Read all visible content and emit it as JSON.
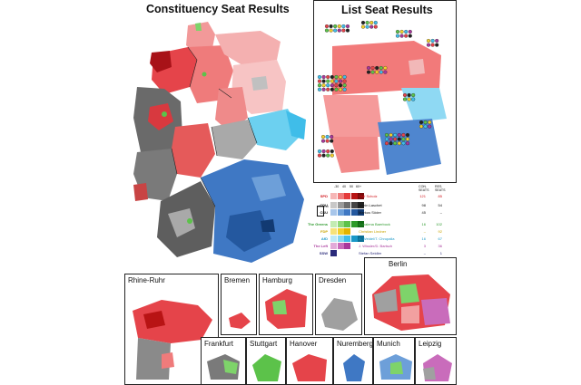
{
  "titles": {
    "constituency": "Constituency Seat Results",
    "list": "List Seat Results"
  },
  "legend": {
    "thresholds": [
      "-30",
      "40",
      "50",
      "60+"
    ],
    "col_con": "CON. SEATS",
    "col_res": "RES. SEATS",
    "union_tag": "CDU/CSU",
    "parties": [
      {
        "party": "SPD",
        "leader": "Olaf Scholz",
        "con": "121",
        "res": "85",
        "colors": [
          "#f6b6b6",
          "#ef7b7b",
          "#e53a3a",
          "#b81414",
          "#7a0a0a"
        ],
        "text_color": "#d1141b"
      },
      {
        "party": "CDU",
        "leader": "Armin Laschet",
        "con": "98",
        "res": "54",
        "colors": [
          "#c8c8c8",
          "#9a9a9a",
          "#6d6d6d",
          "#454545",
          "#222222"
        ],
        "text_color": "#111111"
      },
      {
        "party": "CSU",
        "leader": "Markus Söder",
        "con": "45",
        "res": "–",
        "colors": [
          "#a8c6ea",
          "#6d9fd9",
          "#3f78c4",
          "#24589f",
          "#123a72"
        ],
        "text_color": "#111111"
      },
      {
        "party": "The Greens",
        "leader": "Annalena Baerbock",
        "con": "16",
        "res": "102",
        "colors": [
          "#c3ecb3",
          "#8ed879",
          "#5cc24a",
          "#2e9b2a",
          "#136b16"
        ],
        "text_color": "#2f9a2f"
      },
      {
        "party": "FDP",
        "leader": "Christian Lindner",
        "con": "–",
        "res": "92",
        "colors": [
          "#f7e27a",
          "#f2cf2c",
          "#e2b400"
        ],
        "text_color": "#c9a400"
      },
      {
        "party": "AfD",
        "leader": "A. Weidel/T. Chrupalla",
        "con": "16",
        "res": "67",
        "colors": [
          "#bde9f7",
          "#84d6f2",
          "#3fbde9",
          "#1b98c7",
          "#0b6f95"
        ],
        "text_color": "#1b98c7"
      },
      {
        "party": "The Left",
        "leader": "J. Wissler/D. Bartsch",
        "con": "3",
        "res": "36",
        "colors": [
          "#e2a9d8",
          "#c96cbb",
          "#a8389b"
        ],
        "text_color": "#a8389b"
      },
      {
        "party": "SSW",
        "leader": "Stefan Seidler",
        "con": "–",
        "res": "1",
        "colors": [
          "#2a2a7a"
        ],
        "text_color": "#2a2a7a"
      }
    ]
  },
  "insets": [
    {
      "id": "rhine-ruhr",
      "label": "Rhine-Ruhr"
    },
    {
      "id": "bremen",
      "label": "Bremen"
    },
    {
      "id": "hamburg",
      "label": "Hamburg"
    },
    {
      "id": "dresden",
      "label": "Dresden"
    },
    {
      "id": "berlin",
      "label": "Berlin"
    },
    {
      "id": "frankfurt",
      "label": "Frankfurt"
    },
    {
      "id": "stuttgart",
      "label": "Stuttgart"
    },
    {
      "id": "hanover",
      "label": "Hanover"
    },
    {
      "id": "nuremberg",
      "label": "Nuremberg"
    },
    {
      "id": "munich",
      "label": "Munich"
    },
    {
      "id": "leipzig",
      "label": "Leipzig"
    }
  ]
}
